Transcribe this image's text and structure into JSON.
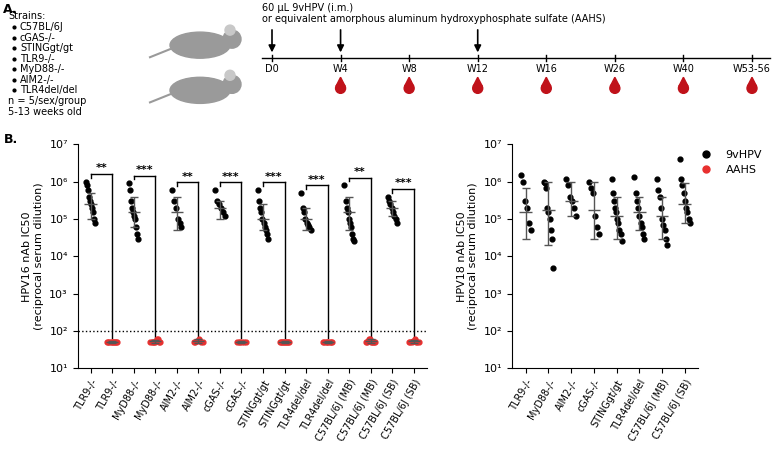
{
  "panel_labels": [
    "A.",
    "B."
  ],
  "panel_a": {
    "strains_header": "Strains:",
    "strains": [
      "C57BL/6J",
      "cGAS-/-",
      "STINGgt/gt",
      "TLR9-/-",
      "MyD88-/-",
      "AIM2-/-",
      "TLR4del/del"
    ],
    "group_size": "n = 5/sex/group",
    "age": "5-13 weeks old",
    "treatment": [
      "60 µL 9vHPV (i.m.)",
      "or equivalent amorphous aluminum hydroxyphosphate sulfate (AAHS)"
    ],
    "timepoints": [
      "D0",
      "W4",
      "W8",
      "W12",
      "W16",
      "W26",
      "W40",
      "W53-56"
    ],
    "injections": [
      "D0",
      "W4",
      "W12"
    ],
    "bleeds": [
      "W4",
      "W8",
      "W12",
      "W16",
      "W26",
      "W40",
      "W53-56"
    ]
  },
  "chart_data": [
    {
      "type": "scatter",
      "y_label": "HPV16 nAb IC50\n(reciprocal serum dilution)",
      "categories": [
        "TLR9-/-",
        "TLR9-/-",
        "MyD88-/-",
        "MyD88-/-",
        "AIM2-/-",
        "AIM2-/-",
        "cGAS-/-",
        "cGAS-/-",
        "STINGgt/gt",
        "STINGgt/gt",
        "TLR4del/del",
        "TLR4del/del",
        "C57BL/6J (MB)",
        "C57BL/6J (MB)",
        "C57BL/6J (SB)",
        "C57BL/6J (SB)"
      ],
      "log": "y",
      "ylim": [
        10,
        10000000
      ],
      "yticks": [
        {
          "value": 10,
          "label": "10¹"
        },
        {
          "value": 100,
          "label": "10²"
        },
        {
          "value": 1000,
          "label": "10³"
        },
        {
          "value": 10000,
          "label": "10⁴"
        },
        {
          "value": 100000,
          "label": "10⁵"
        },
        {
          "value": 1000000,
          "label": "10⁶"
        },
        {
          "value": 10000000,
          "label": "10⁷"
        }
      ],
      "reference_line": 100,
      "significance": [
        "**",
        "***",
        "**",
        "***",
        "***",
        "***",
        "**",
        "***"
      ],
      "legend": "upper right",
      "series": [
        {
          "name": "9vHPV",
          "color": "#000000",
          "marker": "o",
          "values": [
            [
              1000000,
              800000,
              600000,
              400000,
              300000,
              250000,
              200000,
              150000,
              100000,
              80000
            ],
            null,
            [
              900000,
              600000,
              300000,
              200000,
              150000,
              120000,
              100000,
              60000,
              40000,
              30000
            ],
            null,
            [
              600000,
              300000,
              200000,
              100000,
              80000,
              60000
            ],
            null,
            [
              600000,
              300000,
              250000,
              200000,
              150000,
              120000
            ],
            null,
            [
              600000,
              300000,
              200000,
              150000,
              100000,
              80000,
              60000,
              50000,
              40000,
              30000
            ],
            null,
            [
              500000,
              200000,
              150000,
              100000,
              80000,
              70000,
              60000,
              50000
            ],
            null,
            [
              800000,
              300000,
              200000,
              150000,
              100000,
              80000,
              60000,
              40000,
              30000,
              25000
            ],
            null,
            [
              400000,
              300000,
              250000,
              200000,
              150000,
              120000,
              100000,
              80000
            ],
            null
          ],
          "mean": [
            250000,
            null,
            150000,
            null,
            150000,
            null,
            200000,
            null,
            100000,
            null,
            100000,
            null,
            150000,
            null,
            200000,
            null
          ],
          "error": [
            [
              100000,
              500000
            ],
            null,
            [
              60000,
              400000
            ],
            null,
            [
              50000,
              400000
            ],
            null,
            [
              100000,
              300000
            ],
            null,
            [
              50000,
              250000
            ],
            null,
            [
              50000,
              200000
            ],
            null,
            [
              50000,
              400000
            ],
            null,
            [
              120000,
              300000
            ],
            null
          ]
        },
        {
          "name": "AAHS",
          "color": "#e8302f",
          "marker": "o",
          "values": [
            null,
            [
              50,
              50,
              50,
              50,
              50,
              50,
              50,
              50,
              50,
              50
            ],
            null,
            [
              50,
              50,
              50,
              50,
              50,
              55,
              60,
              60,
              50,
              50
            ],
            null,
            [
              50,
              50,
              55,
              60,
              50,
              50
            ],
            null,
            [
              50,
              50,
              50,
              50,
              50,
              50
            ],
            null,
            [
              50,
              50,
              50,
              50,
              50,
              50,
              50,
              50,
              50,
              50
            ],
            null,
            [
              50,
              50,
              50,
              50,
              50,
              50,
              50,
              50
            ],
            null,
            [
              50,
              50,
              55,
              60,
              60,
              50,
              50,
              50,
              50,
              50
            ],
            null,
            [
              50,
              50,
              50,
              55,
              60,
              50,
              50,
              50
            ]
          ],
          "mean": [
            null,
            50,
            null,
            52,
            null,
            53,
            null,
            50,
            null,
            50,
            null,
            50,
            null,
            53,
            null,
            52
          ],
          "error": [
            null,
            [
              48,
              52
            ],
            null,
            [
              47,
              58
            ],
            null,
            [
              46,
              60
            ],
            null,
            [
              48,
              52
            ],
            null,
            [
              48,
              52
            ],
            null,
            [
              48,
              52
            ],
            null,
            [
              46,
              60
            ],
            null,
            [
              46,
              58
            ]
          ]
        }
      ]
    },
    {
      "type": "scatter",
      "y_label": "HPV18 nAb IC50\n(reciprocal serum dilution)",
      "categories": [
        "TLR9-/-",
        "MyD88-/-",
        "AIM2-/-",
        "cGAS-/-",
        "STINGgt/gt",
        "TLR4del/del",
        "C57BL/6J (MB)",
        "C57BL/6J (SB)"
      ],
      "log": "y",
      "ylim": [
        10,
        10000000
      ],
      "yticks": [
        {
          "value": 10,
          "label": "10¹"
        },
        {
          "value": 100,
          "label": "10²"
        },
        {
          "value": 1000,
          "label": "10³"
        },
        {
          "value": 10000,
          "label": "10⁴"
        },
        {
          "value": 100000,
          "label": "10⁵"
        },
        {
          "value": 1000000,
          "label": "10⁶"
        },
        {
          "value": 10000000,
          "label": "10⁷"
        }
      ],
      "series": [
        {
          "name": "9vHPV",
          "color": "#000000",
          "marker": "o",
          "values": [
            [
              1500000,
              1000000,
              300000,
              200000,
              80000,
              50000
            ],
            [
              1000000,
              900000,
              700000,
              200000,
              150000,
              100000,
              50000,
              30000,
              5000
            ],
            [
              1200000,
              800000,
              400000,
              300000,
              200000,
              120000
            ],
            [
              1000000,
              700000,
              500000,
              120000,
              60000,
              40000
            ],
            [
              1200000,
              500000,
              300000,
              200000,
              150000,
              100000,
              80000,
              50000,
              40000,
              25000
            ],
            [
              1300000,
              500000,
              300000,
              200000,
              120000,
              80000,
              60000,
              40000,
              30000
            ],
            [
              1200000,
              600000,
              400000,
              200000,
              100000,
              70000,
              50000,
              30000,
              20000
            ],
            [
              4000000,
              1200000,
              800000,
              500000,
              300000,
              200000,
              150000,
              100000,
              80000
            ]
          ],
          "mean": [
            150000,
            170000,
            300000,
            180000,
            120000,
            150000,
            120000,
            250000
          ],
          "error": [
            [
              30000,
              700000
            ],
            [
              20000,
              1000000
            ],
            [
              120000,
              1000000
            ],
            [
              30000,
              1000000
            ],
            [
              30000,
              400000
            ],
            [
              50000,
              400000
            ],
            [
              30000,
              400000
            ],
            [
              80000,
              900000
            ]
          ]
        }
      ]
    }
  ]
}
